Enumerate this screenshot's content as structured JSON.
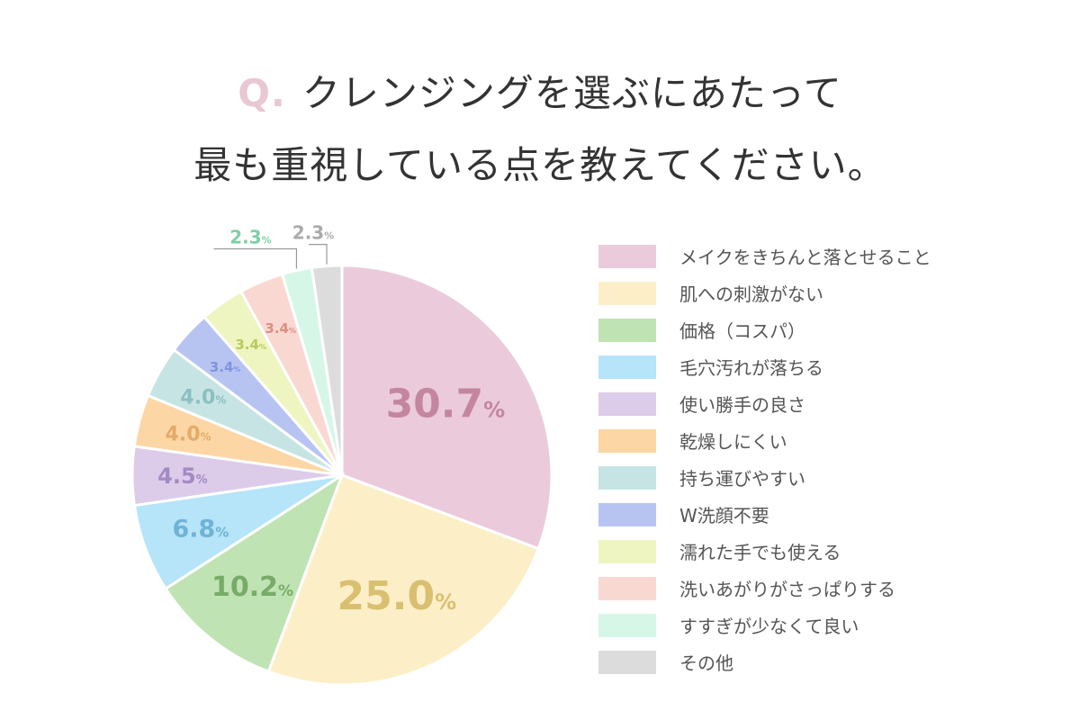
{
  "title": {
    "q_mark": "Q.",
    "line1": "クレンジングを選ぶにあたって",
    "line2": "最も重視している点を教えてください。"
  },
  "chart_data": {
    "type": "pie",
    "title": "Q. クレンジングを選ぶにあたって 最も重視している点を教えてください。",
    "unit": "%",
    "legend_position": "right",
    "slices": [
      {
        "label": "メイクをきちんと落とせること",
        "value": 30.7,
        "display": "30.7",
        "color": "#ebcbdb",
        "text_color": "#c4869e"
      },
      {
        "label": "肌への刺激がない",
        "value": 25.0,
        "display": "25.0",
        "color": "#fcefc8",
        "text_color": "#d9bf6f"
      },
      {
        "label": "価格（コスパ）",
        "value": 10.2,
        "display": "10.2",
        "color": "#c0e3b4",
        "text_color": "#78ab67"
      },
      {
        "label": "毛穴汚れが落ちる",
        "value": 6.8,
        "display": "6.8",
        "color": "#b6e4f8",
        "text_color": "#6fb3d6"
      },
      {
        "label": "使い勝手の良さ",
        "value": 4.5,
        "display": "4.5",
        "color": "#dccbe9",
        "text_color": "#a48ac2"
      },
      {
        "label": "乾燥しにくい",
        "value": 4.0,
        "display": "4.0",
        "color": "#fcd6a4",
        "text_color": "#e2ab68"
      },
      {
        "label": "持ち運びやすい",
        "value": 4.0,
        "display": "4.0",
        "color": "#c7e4e4",
        "text_color": "#8bbfc0"
      },
      {
        "label": "W洗顔不要",
        "value": 3.4,
        "display": "3.4",
        "color": "#b7c4f2",
        "text_color": "#7f93df"
      },
      {
        "label": "濡れた手でも使える",
        "value": 3.4,
        "display": "3.4",
        "color": "#eef5c0",
        "text_color": "#b8c95a"
      },
      {
        "label": "洗いあがりがさっぱりする",
        "value": 3.4,
        "display": "3.4",
        "color": "#fad8d2",
        "text_color": "#d99080"
      },
      {
        "label": "すすぎが少なくて良い",
        "value": 2.3,
        "display": "2.3",
        "color": "#d6f7e8",
        "text_color": "#7fcfa8"
      },
      {
        "label": "その他",
        "value": 2.3,
        "display": "2.3",
        "color": "#dcdcdc",
        "text_color": "#aaaaaa"
      }
    ]
  }
}
